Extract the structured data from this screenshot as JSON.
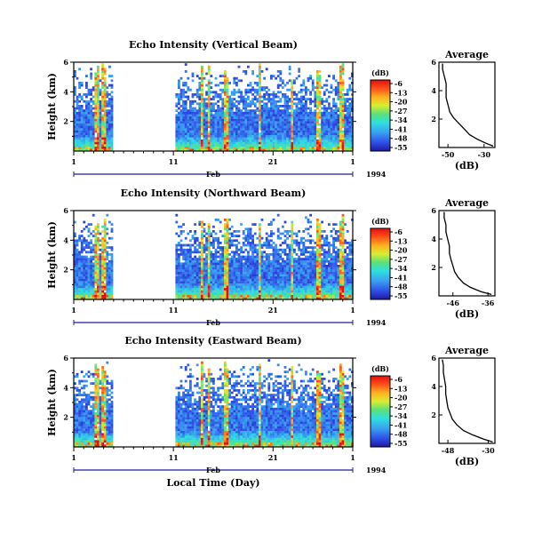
{
  "chart_data": [
    {
      "type": "heatmap",
      "title": "Echo Intensity (Vertical Beam)",
      "ylabel": "Height (km)",
      "yticks": [
        "2",
        "4",
        "6"
      ],
      "ylim": [
        0,
        6
      ],
      "xticks": [
        "1",
        "11",
        "21",
        "1"
      ],
      "month_label": "Feb",
      "year_label": "1994",
      "data_gaps_days": [
        [
          4.8,
          11.2
        ]
      ],
      "colorbar": {
        "unit": "(dB)",
        "labels": [
          "-6",
          "-13",
          "-20",
          "-27",
          "-34",
          "-41",
          "-48",
          "-55"
        ],
        "range": [
          -55,
          -6
        ]
      },
      "profile": {
        "title": "Average",
        "xlabel": "(dB)",
        "xticks": [
          "-50",
          "-30"
        ],
        "xlim": [
          -55,
          -24
        ],
        "yticks": [
          "2",
          "4",
          "6"
        ],
        "ylim": [
          0,
          6
        ],
        "x": [
          -25,
          -29,
          -34,
          -38,
          -41,
          -44,
          -47,
          -49,
          -50,
          -51,
          -51,
          -51,
          -52,
          -53,
          -53
        ],
        "y": [
          0.1,
          0.3,
          0.6,
          0.9,
          1.3,
          1.7,
          2.1,
          2.5,
          3.0,
          3.5,
          4.0,
          4.5,
          5.0,
          5.5,
          5.9
        ]
      }
    },
    {
      "type": "heatmap",
      "title": "Echo Intensity (Northward Beam)",
      "ylabel": "Height (km)",
      "yticks": [
        "2",
        "4",
        "6"
      ],
      "ylim": [
        0,
        6
      ],
      "xticks": [
        "1",
        "11",
        "21",
        "1"
      ],
      "month_label": "Feb",
      "year_label": "1994",
      "data_gaps_days": [
        [
          4.8,
          11.2
        ]
      ],
      "colorbar": {
        "unit": "(dB)",
        "labels": [
          "-6",
          "-13",
          "-20",
          "-27",
          "-34",
          "-41",
          "-48",
          "-55"
        ],
        "range": [
          -55,
          -6
        ]
      },
      "profile": {
        "title": "Average",
        "xlabel": "(dB)",
        "xticks": [
          "-46",
          "-36"
        ],
        "xlim": [
          -50,
          -34
        ],
        "yticks": [
          "2",
          "4",
          "6"
        ],
        "ylim": [
          0,
          6
        ],
        "x": [
          -35,
          -38,
          -41,
          -43,
          -44.5,
          -45.5,
          -46,
          -46.5,
          -47,
          -47,
          -47.5,
          -48,
          -48,
          -48.5,
          -48.5
        ],
        "y": [
          0.1,
          0.3,
          0.6,
          0.9,
          1.3,
          1.7,
          2.1,
          2.5,
          3.0,
          3.5,
          4.0,
          4.5,
          5.0,
          5.5,
          5.9
        ]
      }
    },
    {
      "type": "heatmap",
      "title": "Echo Intensity (Eastward Beam)",
      "ylabel": "Height (km)",
      "yticks": [
        "2",
        "4",
        "6"
      ],
      "ylim": [
        0,
        6
      ],
      "xticks": [
        "1",
        "11",
        "21",
        "1"
      ],
      "xlabel": "Local Time (Day)",
      "month_label": "Feb",
      "year_label": "1994",
      "data_gaps_days": [
        [
          4.8,
          11.2
        ]
      ],
      "colorbar": {
        "unit": "(dB)",
        "labels": [
          "-6",
          "-13",
          "-20",
          "-27",
          "-34",
          "-41",
          "-48",
          "-55"
        ],
        "range": [
          -55,
          -6
        ]
      },
      "profile": {
        "title": "Average",
        "xlabel": "(dB)",
        "xticks": [
          "-48",
          "-30"
        ],
        "xlim": [
          -52,
          -27
        ],
        "yticks": [
          "2",
          "4",
          "6"
        ],
        "ylim": [
          0,
          6
        ],
        "x": [
          -28,
          -32,
          -37,
          -41,
          -44,
          -46,
          -47,
          -48,
          -48.5,
          -49,
          -49,
          -49.5,
          -50,
          -50,
          -50.5
        ],
        "y": [
          0.1,
          0.3,
          0.6,
          0.9,
          1.3,
          1.7,
          2.1,
          2.5,
          3.0,
          3.5,
          4.0,
          4.5,
          5.0,
          5.5,
          5.9
        ]
      }
    }
  ]
}
